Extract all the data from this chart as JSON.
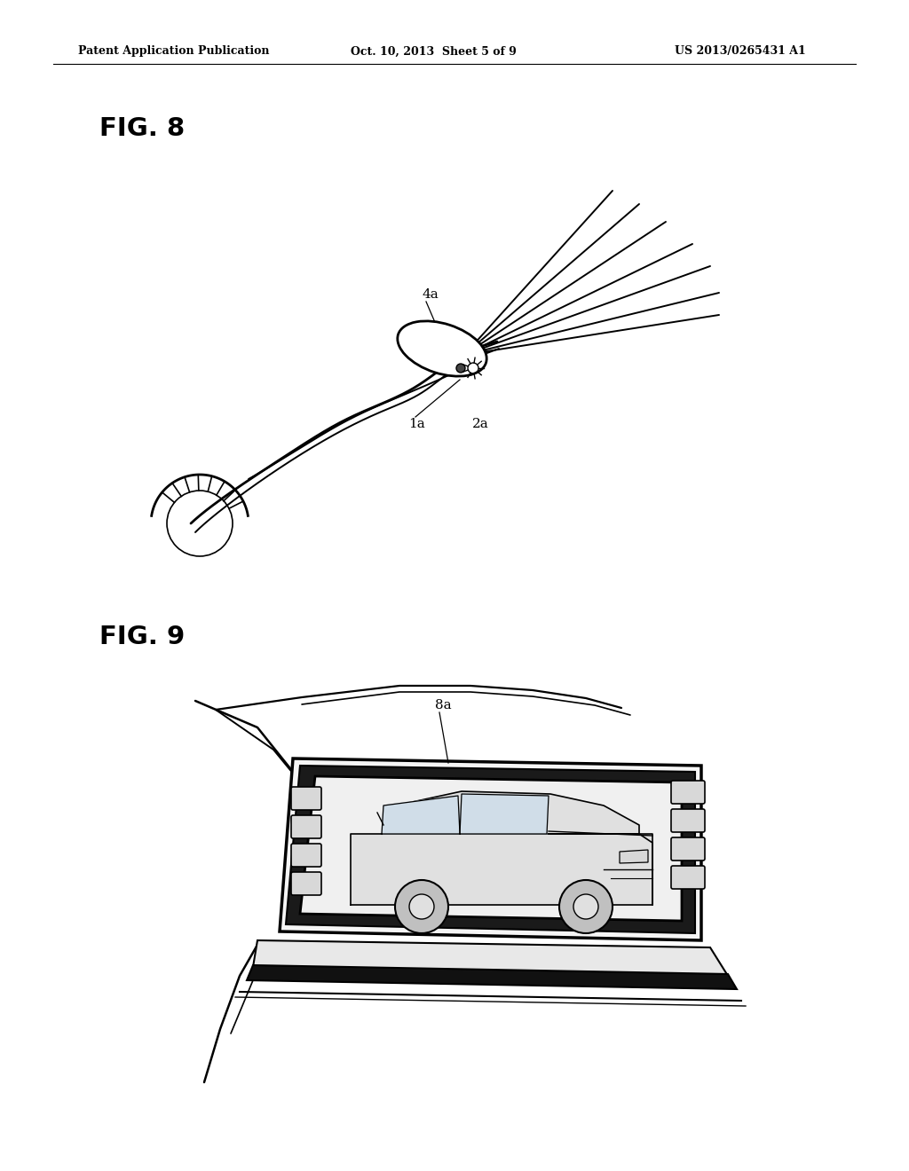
{
  "bg_color": "#ffffff",
  "header_left": "Patent Application Publication",
  "header_center": "Oct. 10, 2013  Sheet 5 of 9",
  "header_right": "US 2013/0265431 A1",
  "fig8_label": "FIG. 8",
  "fig9_label": "FIG. 9",
  "label_4a": "4a",
  "label_1a": "1a",
  "label_2a": "2a",
  "label_8a": "8a"
}
